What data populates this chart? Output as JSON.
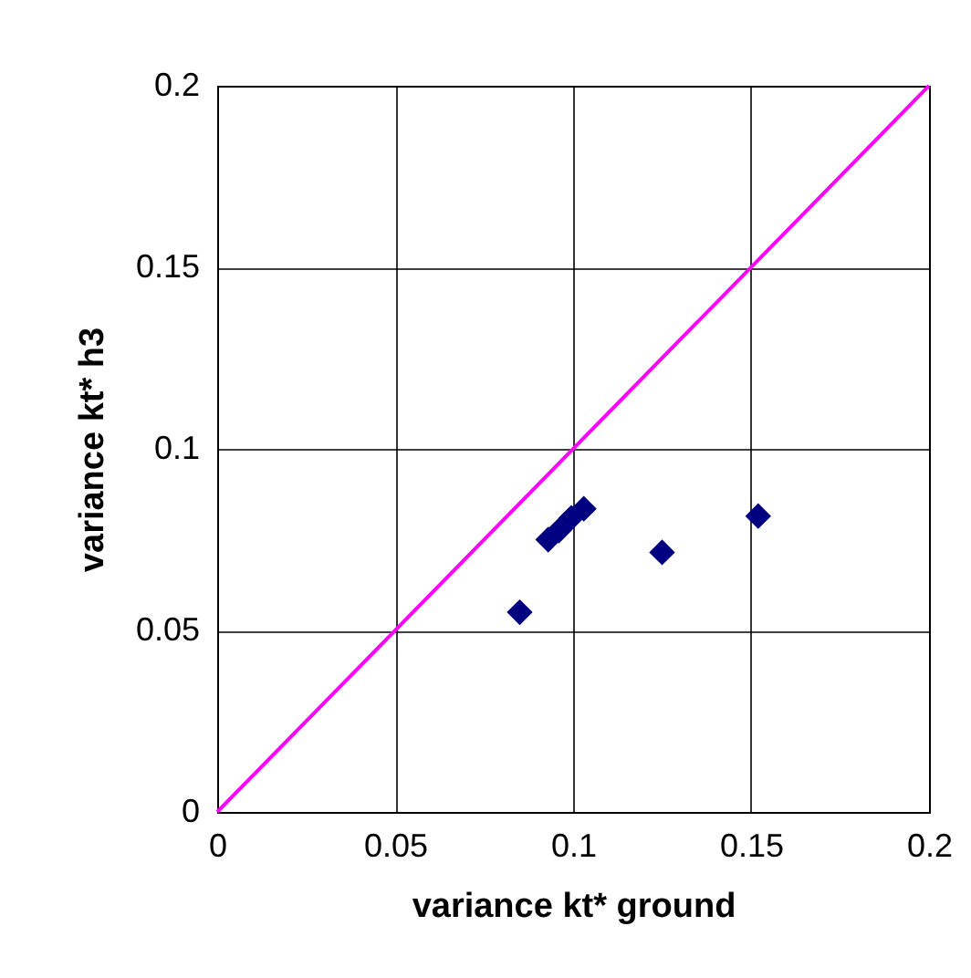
{
  "chart_data": {
    "type": "scatter",
    "xlabel": "variance kt* ground",
    "ylabel": "variance kt* h3",
    "xlim": [
      0,
      0.2
    ],
    "ylim": [
      0,
      0.2
    ],
    "xticks": [
      0,
      0.05,
      0.1,
      0.15,
      0.2
    ],
    "yticks": [
      0,
      0.05,
      0.1,
      0.15,
      0.2
    ],
    "grid": true,
    "series": [
      {
        "color": "#000080",
        "marker": "diamond",
        "x": [
          0.085,
          0.093,
          0.096,
          0.0995,
          0.103,
          0.125,
          0.152
        ],
        "values": [
          0.055,
          0.075,
          0.0775,
          0.081,
          0.0835,
          0.0715,
          0.0815
        ]
      },
      {
        "type": "line",
        "color": "#ff00ff",
        "x": [
          0,
          0.2
        ],
        "values": [
          0,
          0.2
        ]
      }
    ]
  }
}
